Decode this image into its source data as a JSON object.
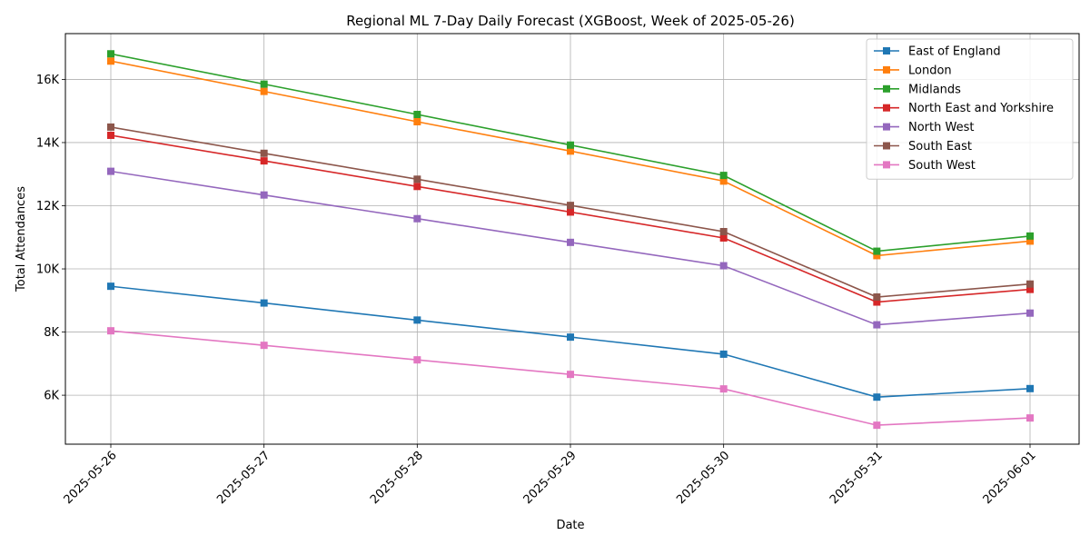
{
  "chart_data": {
    "type": "line",
    "title": "Regional ML 7-Day Daily Forecast (XGBoost, Week of 2025-05-26)",
    "xlabel": "Date",
    "ylabel": "Total Attendances",
    "x": [
      "2025-05-26",
      "2025-05-27",
      "2025-05-28",
      "2025-05-29",
      "2025-05-30",
      "2025-05-31",
      "2025-06-01"
    ],
    "ylim": [
      4450,
      17450
    ],
    "yticks": [
      6000,
      8000,
      10000,
      12000,
      14000,
      16000
    ],
    "ytick_labels": [
      "6K",
      "8K",
      "10K",
      "12K",
      "14K",
      "16K"
    ],
    "grid": true,
    "legend_position": "top-right",
    "marker": "square",
    "series": [
      {
        "name": "East of England",
        "color": "#1f77b4",
        "values": [
          9450,
          8920,
          8380,
          7840,
          7300,
          5940,
          6210
        ]
      },
      {
        "name": "London",
        "color": "#ff7f0e",
        "values": [
          16580,
          15620,
          14660,
          13730,
          12780,
          10420,
          10880
        ]
      },
      {
        "name": "Midlands",
        "color": "#2ca02c",
        "values": [
          16810,
          15850,
          14890,
          13920,
          12960,
          10560,
          11040
        ]
      },
      {
        "name": "North East and Yorkshire",
        "color": "#d62728",
        "values": [
          14230,
          13420,
          12610,
          11800,
          10980,
          8950,
          9350
        ]
      },
      {
        "name": "North West",
        "color": "#9467bd",
        "values": [
          13090,
          12340,
          11590,
          10840,
          10100,
          8230,
          8600
        ]
      },
      {
        "name": "South East",
        "color": "#8c564b",
        "values": [
          14490,
          13660,
          12840,
          12010,
          11180,
          9110,
          9520
        ]
      },
      {
        "name": "South West",
        "color": "#e377c2",
        "values": [
          8040,
          7580,
          7120,
          6660,
          6200,
          5050,
          5280
        ]
      }
    ]
  }
}
